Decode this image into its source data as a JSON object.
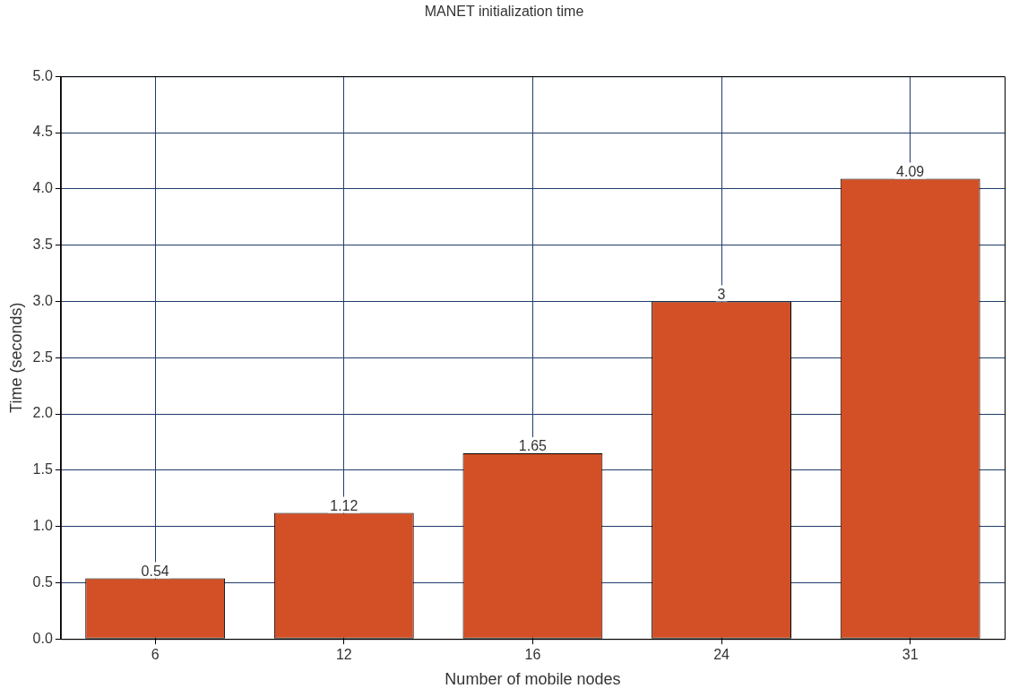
{
  "chart_data": {
    "type": "bar",
    "title": "MANET initialization time",
    "xlabel": "Number of mobile nodes",
    "ylabel": "Time (seconds)",
    "categories": [
      "6",
      "12",
      "16",
      "24",
      "31"
    ],
    "values": [
      0.54,
      1.12,
      1.65,
      3,
      4.09
    ],
    "color": "#d35027",
    "ylim": [
      0,
      5
    ],
    "yticks": [
      {
        "value": 0,
        "label": "0.0"
      },
      {
        "value": 0.5,
        "label": "0.5"
      },
      {
        "value": 1,
        "label": "1.0"
      },
      {
        "value": 1.5,
        "label": "1.5"
      },
      {
        "value": 2,
        "label": "2.0"
      },
      {
        "value": 2.5,
        "label": "2.5"
      },
      {
        "value": 3,
        "label": "3.0"
      },
      {
        "value": 3.5,
        "label": "3.5"
      },
      {
        "value": 4,
        "label": "4.0"
      },
      {
        "value": 4.5,
        "label": "4.5"
      },
      {
        "value": 5,
        "label": "5.0"
      }
    ],
    "grid": true,
    "data_labels": true
  }
}
